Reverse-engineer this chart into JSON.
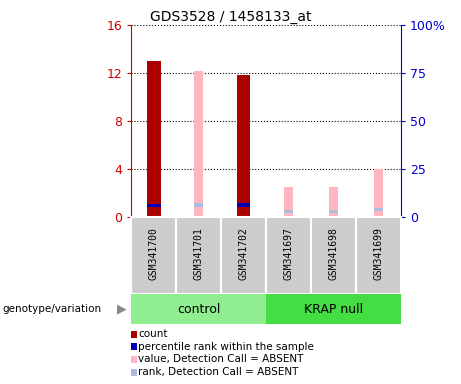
{
  "title": "GDS3528 / 1458133_at",
  "samples": [
    "GSM341700",
    "GSM341701",
    "GSM341702",
    "GSM341697",
    "GSM341698",
    "GSM341699"
  ],
  "ylim_left": [
    0,
    16
  ],
  "ylim_right": [
    0,
    100
  ],
  "yticks_left": [
    0,
    4,
    8,
    12,
    16
  ],
  "yticks_right": [
    0,
    25,
    50,
    75,
    100
  ],
  "yticklabels_right": [
    "0",
    "25",
    "50",
    "75",
    "100%"
  ],
  "bar_data": {
    "GSM341700": {
      "count": 13.0,
      "rank": 6.0,
      "absent_value": null,
      "absent_rank": null
    },
    "GSM341701": {
      "count": null,
      "rank": null,
      "absent_value": 12.2,
      "absent_rank": 6.2
    },
    "GSM341702": {
      "count": 11.8,
      "rank": 6.2,
      "absent_value": null,
      "absent_rank": null
    },
    "GSM341697": {
      "count": null,
      "rank": null,
      "absent_value": 2.5,
      "absent_rank": 3.0
    },
    "GSM341698": {
      "count": null,
      "rank": null,
      "absent_value": 2.5,
      "absent_rank": 3.0
    },
    "GSM341699": {
      "count": null,
      "rank": null,
      "absent_value": 4.0,
      "absent_rank": 3.8
    }
  },
  "group_spans": [
    {
      "start": 0,
      "end": 2,
      "name": "control",
      "color": "#90EE90"
    },
    {
      "start": 3,
      "end": 5,
      "name": "KRAP null",
      "color": "#44DD44"
    }
  ],
  "colors": {
    "count_bar": "#AA0000",
    "rank_marker": "#0000BB",
    "absent_value_bar": "#FFB6C1",
    "absent_rank_marker": "#AABBDD",
    "axis_left": "#CC0000",
    "axis_right": "#0000CC",
    "bg_label": "#CCCCCC",
    "label_border": "#FFFFFF"
  },
  "bar_width": 0.3,
  "rank_bar_height": 0.3,
  "legend": [
    {
      "label": "count",
      "color": "#AA0000"
    },
    {
      "label": "percentile rank within the sample",
      "color": "#0000BB"
    },
    {
      "label": "value, Detection Call = ABSENT",
      "color": "#FFB6C1"
    },
    {
      "label": "rank, Detection Call = ABSENT",
      "color": "#AABBDD"
    }
  ]
}
